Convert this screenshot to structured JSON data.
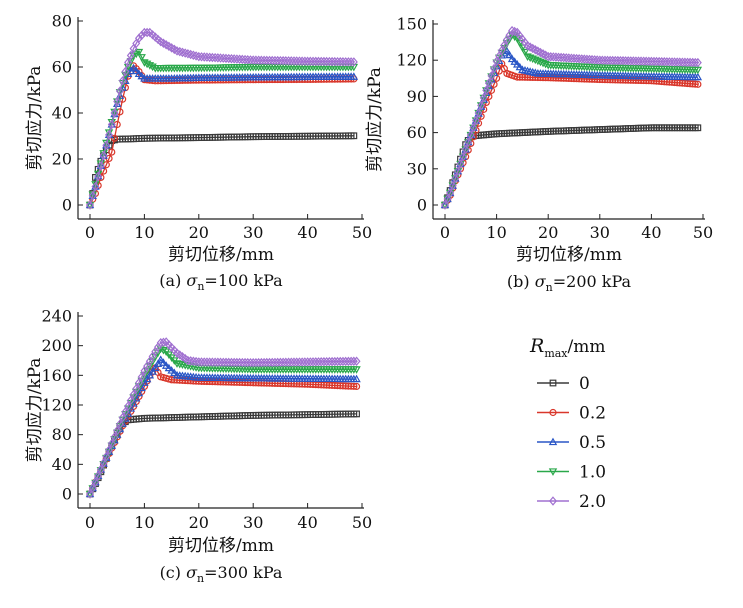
{
  "figure": {
    "legend": {
      "title_symbol": "R",
      "title_sub": "max",
      "title_unit": "/mm",
      "entries": [
        {
          "label": "0",
          "color": "#3a3a3a",
          "marker": "square"
        },
        {
          "label": "0.2",
          "color": "#d9372b",
          "marker": "circle"
        },
        {
          "label": "0.5",
          "color": "#2a56c6",
          "marker": "triangle-up"
        },
        {
          "label": "1.0",
          "color": "#2aa84a",
          "marker": "triangle-down"
        },
        {
          "label": "2.0",
          "color": "#a070d0",
          "marker": "diamond"
        }
      ]
    }
  },
  "chart_data": [
    {
      "type": "line",
      "caption": {
        "prefix": "(a) ",
        "symbol": "σ",
        "sub": "n",
        "suffix": "=100 kPa"
      },
      "xlabel": "剪切位移/mm",
      "ylabel": "剪切应力/kPa",
      "xlim": [
        0,
        50
      ],
      "ylim": [
        0,
        80
      ],
      "xticks": [
        "0",
        "10",
        "20",
        "30",
        "40",
        "50"
      ],
      "yticks": [
        "0",
        "20",
        "40",
        "60",
        "80"
      ],
      "series": [
        {
          "name": "0",
          "points": [
            [
              0,
              0
            ],
            [
              0.5,
              5
            ],
            [
              1,
              12
            ],
            [
              2,
              19
            ],
            [
              3,
              24
            ],
            [
              4,
              28
            ],
            [
              5,
              28.6
            ],
            [
              8,
              28.8
            ],
            [
              10,
              29
            ],
            [
              20,
              29.3
            ],
            [
              30,
              29.7
            ],
            [
              40,
              29.9
            ],
            [
              48.5,
              30.1
            ]
          ]
        },
        {
          "name": "0.2",
          "points": [
            [
              0,
              0
            ],
            [
              1,
              5
            ],
            [
              2,
              12
            ],
            [
              4,
              23
            ],
            [
              5,
              35
            ],
            [
              6,
              46
            ],
            [
              7,
              56
            ],
            [
              8,
              60.5
            ],
            [
              9,
              58
            ],
            [
              10,
              54.5
            ],
            [
              12,
              54
            ],
            [
              20,
              54.3
            ],
            [
              30,
              54.5
            ],
            [
              40,
              54.6
            ],
            [
              48.5,
              54.8
            ]
          ]
        },
        {
          "name": "0.5",
          "points": [
            [
              0,
              0
            ],
            [
              1,
              8
            ],
            [
              2,
              17
            ],
            [
              3,
              26
            ],
            [
              4,
              35
            ],
            [
              5,
              44
            ],
            [
              6,
              51
            ],
            [
              7,
              57
            ],
            [
              8,
              59.5
            ],
            [
              9,
              57
            ],
            [
              10,
              55
            ],
            [
              15,
              55
            ],
            [
              20,
              55.3
            ],
            [
              30,
              55.5
            ],
            [
              40,
              55.7
            ],
            [
              48.5,
              55.8
            ]
          ]
        },
        {
          "name": "1.0",
          "points": [
            [
              0,
              0
            ],
            [
              1,
              9
            ],
            [
              2,
              18
            ],
            [
              3,
              27
            ],
            [
              4,
              36
            ],
            [
              5,
              45
            ],
            [
              6,
              53
            ],
            [
              7,
              60
            ],
            [
              8,
              65
            ],
            [
              9,
              66.5
            ],
            [
              10,
              62
            ],
            [
              12,
              59.5
            ],
            [
              20,
              59.6
            ],
            [
              30,
              60
            ],
            [
              40,
              60
            ],
            [
              48.5,
              60
            ]
          ]
        },
        {
          "name": "2.0",
          "points": [
            [
              0,
              0
            ],
            [
              1,
              8
            ],
            [
              2,
              17
            ],
            [
              3,
              26
            ],
            [
              4,
              35
            ],
            [
              5,
              45
            ],
            [
              6,
              54
            ],
            [
              7,
              62
            ],
            [
              8,
              68
            ],
            [
              9,
              72.5
            ],
            [
              10,
              75
            ],
            [
              11,
              75
            ],
            [
              13,
              71
            ],
            [
              16,
              67
            ],
            [
              20,
              64.5
            ],
            [
              30,
              63
            ],
            [
              40,
              62.5
            ],
            [
              48.5,
              62.2
            ]
          ]
        }
      ]
    },
    {
      "type": "line",
      "caption": {
        "prefix": "(b) ",
        "symbol": "σ",
        "sub": "n",
        "suffix": "=200 kPa"
      },
      "xlabel": "剪切位移/mm",
      "ylabel": "剪切应力/kPa",
      "xlim": [
        0,
        50
      ],
      "ylim": [
        0,
        150
      ],
      "xticks": [
        "0",
        "10",
        "20",
        "30",
        "40",
        "50"
      ],
      "yticks": [
        "0",
        "30",
        "60",
        "90",
        "120",
        "150"
      ],
      "series": [
        {
          "name": "0",
          "points": [
            [
              0,
              0
            ],
            [
              1,
              12
            ],
            [
              2,
              25
            ],
            [
              3,
              38
            ],
            [
              4,
              50
            ],
            [
              5,
              57
            ],
            [
              6,
              57.5
            ],
            [
              10,
              59
            ],
            [
              20,
              61
            ],
            [
              30,
              62.5
            ],
            [
              40,
              64
            ],
            [
              49,
              64
            ]
          ]
        },
        {
          "name": "0.2",
          "points": [
            [
              0,
              0
            ],
            [
              1,
              8
            ],
            [
              2,
              20
            ],
            [
              4,
              40
            ],
            [
              6,
              62
            ],
            [
              8,
              85
            ],
            [
              10,
              105
            ],
            [
              11,
              117
            ],
            [
              12,
              109
            ],
            [
              14,
              106
            ],
            [
              20,
              105.5
            ],
            [
              30,
              104
            ],
            [
              40,
              103
            ],
            [
              49,
              100
            ]
          ]
        },
        {
          "name": "0.5",
          "points": [
            [
              0,
              0
            ],
            [
              1,
              10
            ],
            [
              2,
              22
            ],
            [
              4,
              46
            ],
            [
              6,
              70
            ],
            [
              8,
              93
            ],
            [
              10,
              115
            ],
            [
              11,
              124
            ],
            [
              12,
              127.5
            ],
            [
              13,
              121
            ],
            [
              15,
              112
            ],
            [
              18,
              109
            ],
            [
              30,
              107.5
            ],
            [
              40,
              106.5
            ],
            [
              49,
              106
            ]
          ]
        },
        {
          "name": "1.0",
          "points": [
            [
              0,
              0
            ],
            [
              1,
              10
            ],
            [
              2,
              22
            ],
            [
              4,
              46
            ],
            [
              6,
              70
            ],
            [
              8,
              95
            ],
            [
              10,
              118
            ],
            [
              12,
              134
            ],
            [
              13,
              141
            ],
            [
              14,
              138
            ],
            [
              16,
              123
            ],
            [
              20,
              116
            ],
            [
              30,
              114
            ],
            [
              40,
              113
            ],
            [
              49,
              112
            ]
          ]
        },
        {
          "name": "2.0",
          "points": [
            [
              0,
              0
            ],
            [
              1,
              10
            ],
            [
              2,
              22
            ],
            [
              4,
              46
            ],
            [
              6,
              70
            ],
            [
              8,
              95
            ],
            [
              10,
              119
            ],
            [
              12,
              137
            ],
            [
              13,
              144.5
            ],
            [
              14,
              143
            ],
            [
              16,
              132
            ],
            [
              20,
              123
            ],
            [
              30,
              120
            ],
            [
              40,
              119
            ],
            [
              49,
              118
            ]
          ]
        }
      ]
    },
    {
      "type": "line",
      "caption": {
        "prefix": "(c) ",
        "symbol": "σ",
        "sub": "n",
        "suffix": "=300 kPa"
      },
      "xlabel": "剪切位移/mm",
      "ylabel": "剪切应力/kPa",
      "xlim": [
        0,
        50
      ],
      "ylim": [
        0,
        240
      ],
      "xticks": [
        "0",
        "10",
        "20",
        "30",
        "40",
        "50"
      ],
      "yticks": [
        "0",
        "40",
        "80",
        "120",
        "160",
        "200",
        "240"
      ],
      "series": [
        {
          "name": "0",
          "points": [
            [
              0,
              0
            ],
            [
              1,
              14
            ],
            [
              2,
              30
            ],
            [
              3,
              48
            ],
            [
              4,
              65
            ],
            [
              5,
              82
            ],
            [
              6,
              95
            ],
            [
              7,
              100
            ],
            [
              10,
              102
            ],
            [
              20,
              104
            ],
            [
              30,
              106
            ],
            [
              40,
              107
            ],
            [
              49,
              108
            ]
          ]
        },
        {
          "name": "0.2",
          "points": [
            [
              0,
              0
            ],
            [
              1,
              16
            ],
            [
              2,
              32
            ],
            [
              4,
              62
            ],
            [
              6,
              92
            ],
            [
              8,
              118
            ],
            [
              10,
              145
            ],
            [
              11,
              160
            ],
            [
              12,
              170
            ],
            [
              13,
              158
            ],
            [
              15,
              154
            ],
            [
              20,
              152
            ],
            [
              30,
              150
            ],
            [
              40,
              148
            ],
            [
              49,
              145
            ]
          ]
        },
        {
          "name": "0.5",
          "points": [
            [
              0,
              0
            ],
            [
              1,
              16
            ],
            [
              2,
              33
            ],
            [
              4,
              65
            ],
            [
              6,
              95
            ],
            [
              8,
              122
            ],
            [
              10,
              150
            ],
            [
              12,
              170
            ],
            [
              13,
              181
            ],
            [
              14,
              173
            ],
            [
              16,
              160
            ],
            [
              20,
              157
            ],
            [
              30,
              156
            ],
            [
              40,
              155.5
            ],
            [
              49,
              155
            ]
          ]
        },
        {
          "name": "1.0",
          "points": [
            [
              0,
              0
            ],
            [
              1,
              15
            ],
            [
              2,
              32
            ],
            [
              4,
              65
            ],
            [
              6,
              100
            ],
            [
              8,
              130
            ],
            [
              10,
              160
            ],
            [
              12,
              185
            ],
            [
              13,
              196
            ],
            [
              14,
              192
            ],
            [
              16,
              176
            ],
            [
              20,
              170
            ],
            [
              30,
              168
            ],
            [
              40,
              168
            ],
            [
              49,
              168
            ]
          ]
        },
        {
          "name": "2.0",
          "points": [
            [
              0,
              0
            ],
            [
              1,
              16
            ],
            [
              2,
              33
            ],
            [
              4,
              68
            ],
            [
              6,
              103
            ],
            [
              8,
              134
            ],
            [
              10,
              166
            ],
            [
              12,
              192
            ],
            [
              13,
              204
            ],
            [
              14,
              205
            ],
            [
              16,
              190
            ],
            [
              18,
              180
            ],
            [
              20,
              178
            ],
            [
              30,
              177
            ],
            [
              40,
              178
            ],
            [
              49,
              179
            ]
          ]
        }
      ]
    }
  ]
}
